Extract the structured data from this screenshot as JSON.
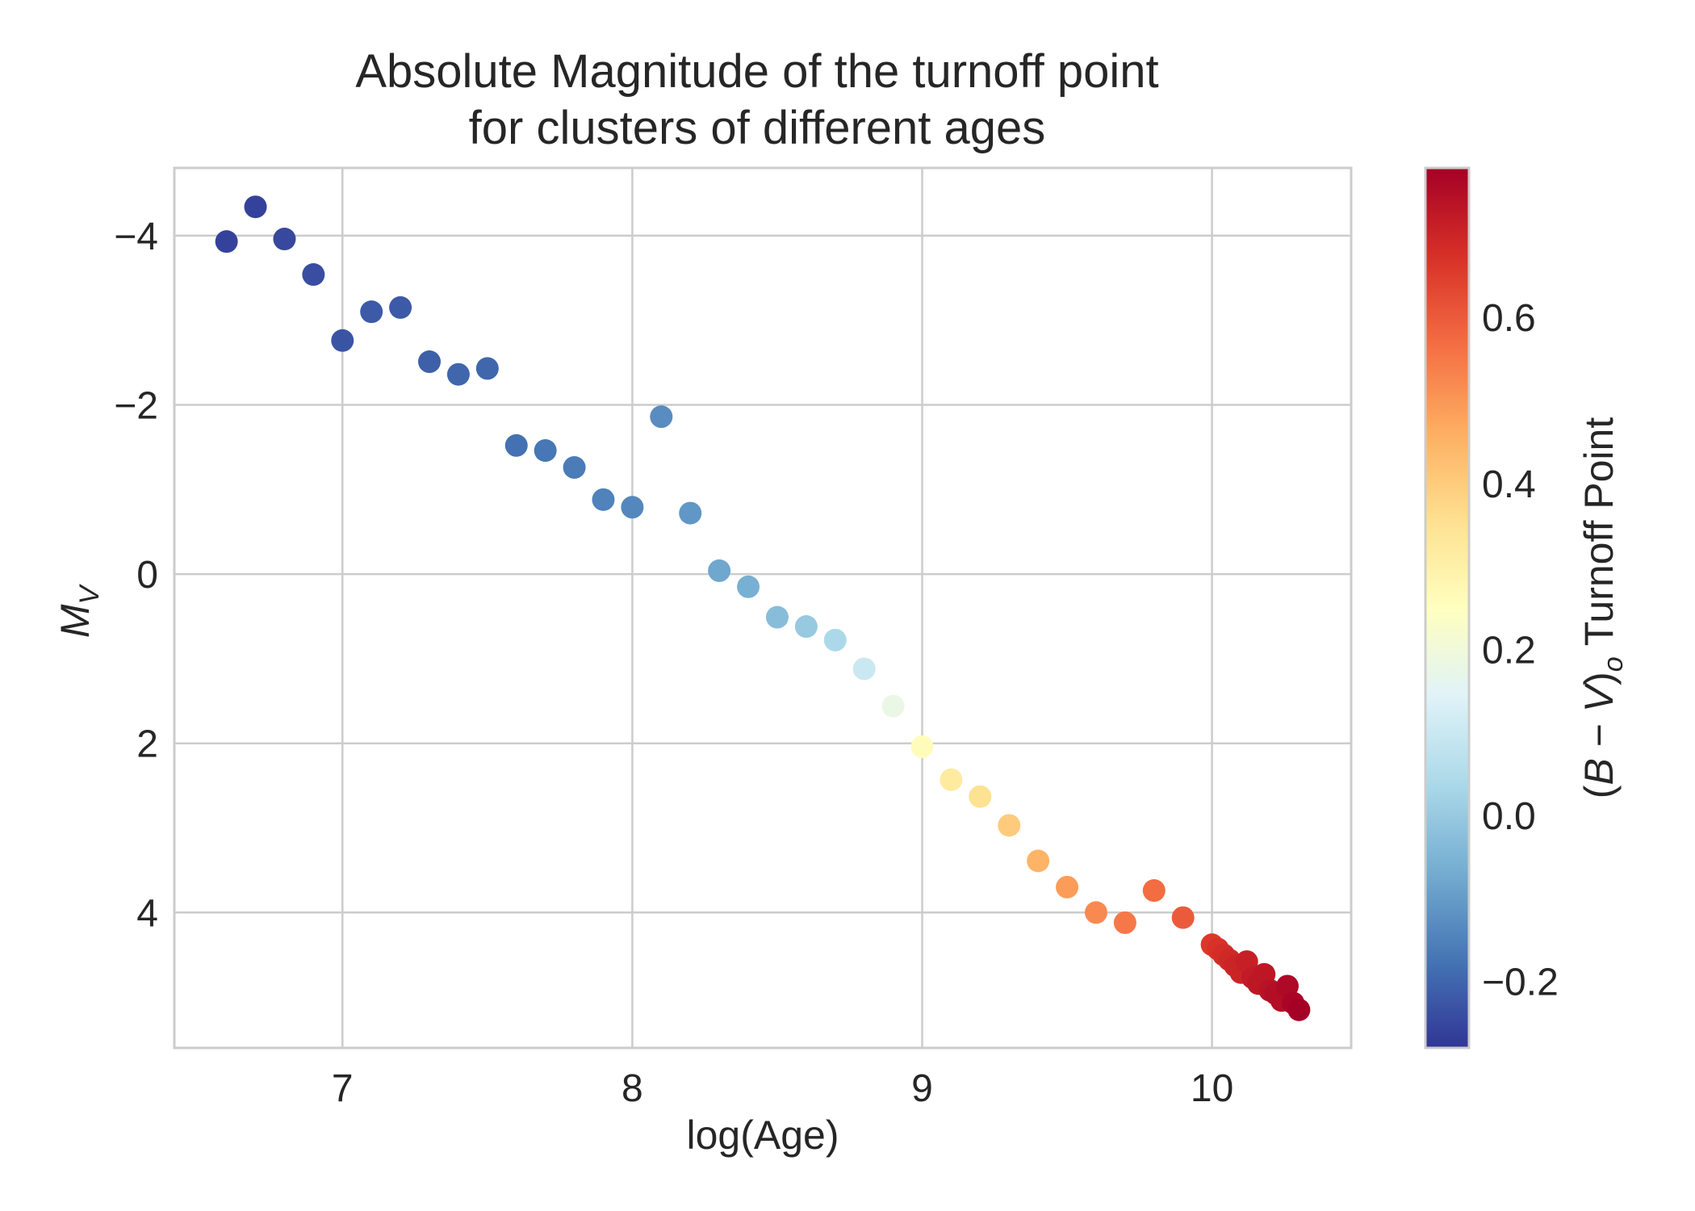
{
  "chart_data": {
    "type": "scatter",
    "title": [
      "Absolute Magnitude of the turnoff point",
      "for clusters of different ages"
    ],
    "xlabel": "log(Age)",
    "ylabel_main": "M",
    "ylabel_sub": "V",
    "colorbar_label": "(B − V)o Turnoff Point",
    "colorbar_label_parts": [
      "(",
      "B",
      " − ",
      "V",
      ")",
      "o",
      " Turnoff Point"
    ],
    "xlim": [
      6.42,
      10.48
    ],
    "ylim": [
      5.6,
      -4.8
    ],
    "x_ticks": [
      7,
      8,
      9,
      10
    ],
    "x_tick_labels": [
      "7",
      "8",
      "9",
      "10"
    ],
    "y_ticks": [
      -4,
      -2,
      0,
      2,
      4
    ],
    "y_tick_labels": [
      "−4",
      "−2",
      "0",
      "2",
      "4"
    ],
    "colorbar_range": [
      -0.28,
      0.78
    ],
    "colorbar_ticks": [
      -0.2,
      0.0,
      0.2,
      0.4,
      0.6
    ],
    "colorbar_tick_labels": [
      "−0.2",
      "0.0",
      "0.2",
      "0.4",
      "0.6"
    ],
    "colormap": "RdYlBu_r",
    "colormap_stops": [
      "#313695",
      "#4575b4",
      "#74add1",
      "#abd9e9",
      "#e0f3f8",
      "#ffffbf",
      "#fee090",
      "#fdae61",
      "#f46d43",
      "#d73027",
      "#a50026"
    ],
    "grid": true,
    "points": [
      {
        "x": 6.6,
        "y": -3.93,
        "c": -0.26
      },
      {
        "x": 6.7,
        "y": -4.34,
        "c": -0.26
      },
      {
        "x": 6.8,
        "y": -3.96,
        "c": -0.25
      },
      {
        "x": 6.9,
        "y": -3.54,
        "c": -0.24
      },
      {
        "x": 7.0,
        "y": -2.76,
        "c": -0.23
      },
      {
        "x": 7.1,
        "y": -3.1,
        "c": -0.22
      },
      {
        "x": 7.2,
        "y": -3.15,
        "c": -0.22
      },
      {
        "x": 7.3,
        "y": -2.51,
        "c": -0.21
      },
      {
        "x": 7.4,
        "y": -2.36,
        "c": -0.2
      },
      {
        "x": 7.5,
        "y": -2.43,
        "c": -0.2
      },
      {
        "x": 7.6,
        "y": -1.52,
        "c": -0.18
      },
      {
        "x": 7.7,
        "y": -1.46,
        "c": -0.17
      },
      {
        "x": 7.8,
        "y": -1.26,
        "c": -0.16
      },
      {
        "x": 7.9,
        "y": -0.88,
        "c": -0.15
      },
      {
        "x": 8.0,
        "y": -0.79,
        "c": -0.14
      },
      {
        "x": 8.1,
        "y": -1.86,
        "c": -0.13
      },
      {
        "x": 8.2,
        "y": -0.72,
        "c": -0.11
      },
      {
        "x": 8.3,
        "y": -0.04,
        "c": -0.08
      },
      {
        "x": 8.4,
        "y": 0.15,
        "c": -0.06
      },
      {
        "x": 8.5,
        "y": 0.51,
        "c": -0.03
      },
      {
        "x": 8.6,
        "y": 0.62,
        "c": 0.0
      },
      {
        "x": 8.7,
        "y": 0.78,
        "c": 0.04
      },
      {
        "x": 8.8,
        "y": 1.12,
        "c": 0.1
      },
      {
        "x": 8.9,
        "y": 1.56,
        "c": 0.18
      },
      {
        "x": 9.0,
        "y": 2.04,
        "c": 0.26
      },
      {
        "x": 9.1,
        "y": 2.43,
        "c": 0.32
      },
      {
        "x": 9.2,
        "y": 2.63,
        "c": 0.35
      },
      {
        "x": 9.3,
        "y": 2.97,
        "c": 0.4
      },
      {
        "x": 9.4,
        "y": 3.39,
        "c": 0.45
      },
      {
        "x": 9.5,
        "y": 3.7,
        "c": 0.49
      },
      {
        "x": 9.6,
        "y": 4.0,
        "c": 0.52
      },
      {
        "x": 9.7,
        "y": 4.12,
        "c": 0.55
      },
      {
        "x": 9.8,
        "y": 3.74,
        "c": 0.57
      },
      {
        "x": 9.9,
        "y": 4.06,
        "c": 0.6
      },
      {
        "x": 10.0,
        "y": 4.38,
        "c": 0.66
      },
      {
        "x": 10.02,
        "y": 4.43,
        "c": 0.67
      },
      {
        "x": 10.04,
        "y": 4.5,
        "c": 0.68
      },
      {
        "x": 10.06,
        "y": 4.56,
        "c": 0.69
      },
      {
        "x": 10.08,
        "y": 4.63,
        "c": 0.7
      },
      {
        "x": 10.1,
        "y": 4.71,
        "c": 0.7
      },
      {
        "x": 10.12,
        "y": 4.58,
        "c": 0.71
      },
      {
        "x": 10.14,
        "y": 4.77,
        "c": 0.72
      },
      {
        "x": 10.16,
        "y": 4.84,
        "c": 0.73
      },
      {
        "x": 10.18,
        "y": 4.73,
        "c": 0.73
      },
      {
        "x": 10.2,
        "y": 4.92,
        "c": 0.74
      },
      {
        "x": 10.22,
        "y": 4.96,
        "c": 0.75
      },
      {
        "x": 10.24,
        "y": 5.04,
        "c": 0.75
      },
      {
        "x": 10.26,
        "y": 4.87,
        "c": 0.76
      },
      {
        "x": 10.28,
        "y": 5.07,
        "c": 0.77
      },
      {
        "x": 10.3,
        "y": 5.15,
        "c": 0.78
      }
    ]
  }
}
